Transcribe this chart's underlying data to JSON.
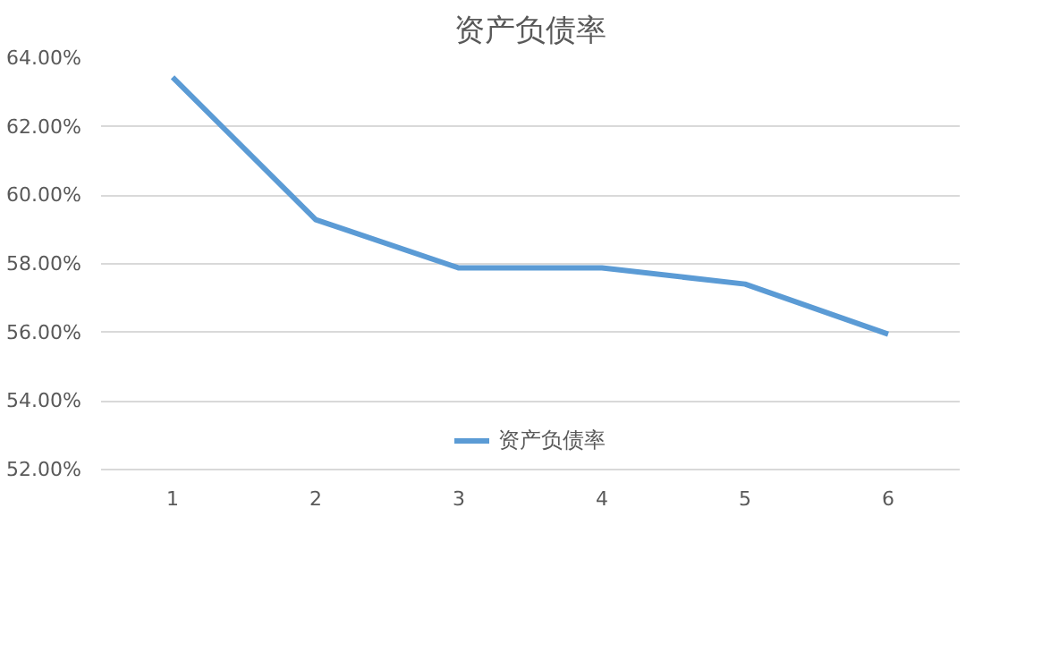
{
  "chart_data": {
    "type": "line",
    "title": "资产负债率",
    "categories": [
      "1",
      "2",
      "3",
      "4",
      "5",
      "6"
    ],
    "series": [
      {
        "name": "资产负债率",
        "color": "#5b9bd5",
        "values": [
          63.44,
          59.29,
          57.88,
          57.88,
          57.41,
          55.95
        ]
      }
    ],
    "ylim": [
      52,
      64
    ],
    "yticks": [
      {
        "value": 52,
        "label": "52.00%"
      },
      {
        "value": 54,
        "label": "54.00%"
      },
      {
        "value": 56,
        "label": "56.00%"
      },
      {
        "value": 58,
        "label": "58.00%"
      },
      {
        "value": 60,
        "label": "60.00%"
      },
      {
        "value": 62,
        "label": "62.00%"
      },
      {
        "value": 64,
        "label": "64.00%"
      }
    ],
    "grid": "y",
    "legend": "bottom",
    "marker": "none",
    "line_style": "solid"
  }
}
